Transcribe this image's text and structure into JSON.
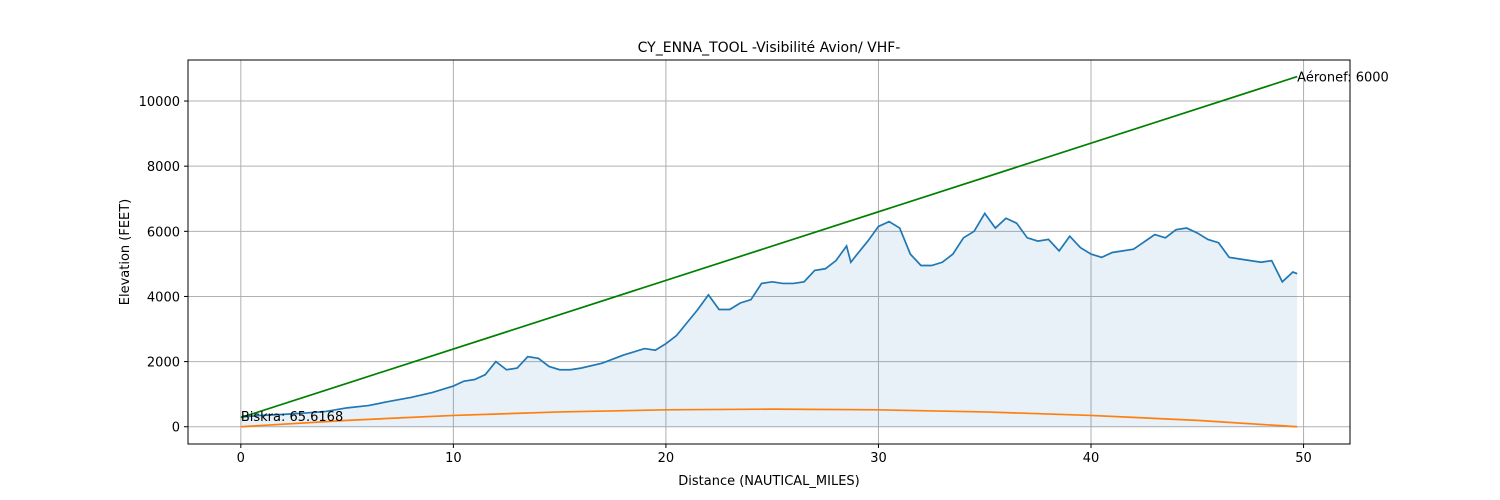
{
  "chart_data": {
    "type": "line",
    "title": "CY_ENNA_TOOL -Visibilité Avion/ VHF-",
    "x_label": "Distance (NAUTICAL_MILES)",
    "y_label": "Elevation (FEET)",
    "xlim": [
      -2.485,
      52.185
    ],
    "ylim": [
      -530,
      11260
    ],
    "xticks": [
      0,
      10,
      20,
      30,
      40,
      50
    ],
    "yticks": [
      0,
      2000,
      4000,
      6000,
      8000,
      10000
    ],
    "grid": true,
    "series": [
      {
        "color": "#1f77b4",
        "fill": "#1f77b4",
        "x": [
          0,
          1,
          2,
          3,
          4,
          5,
          6,
          7,
          8,
          9,
          10,
          10.5,
          11,
          11.5,
          12,
          12.5,
          13,
          13.5,
          14,
          14.5,
          15,
          15.5,
          16,
          17,
          18,
          19,
          19.5,
          20,
          20.5,
          21,
          21.5,
          22,
          22.5,
          23,
          23.5,
          24,
          24.5,
          25,
          25.5,
          26,
          26.5,
          27,
          27.5,
          28,
          28.5,
          28.7,
          29,
          29.5,
          30,
          30.5,
          31,
          31.5,
          32,
          32.5,
          33,
          33.5,
          34,
          34.5,
          35,
          35.5,
          36,
          36.5,
          37,
          37.5,
          38,
          38.5,
          39,
          39.5,
          40,
          40.5,
          41,
          42,
          43,
          43.5,
          44,
          44.5,
          45,
          45.5,
          46,
          46.5,
          47,
          48,
          48.5,
          49,
          49.5,
          49.7
        ],
        "values": [
          300,
          350,
          380,
          420,
          470,
          580,
          650,
          780,
          900,
          1050,
          1250,
          1400,
          1450,
          1600,
          2000,
          1750,
          1800,
          2150,
          2100,
          1850,
          1750,
          1750,
          1800,
          1950,
          2200,
          2400,
          2350,
          2550,
          2800,
          3200,
          3600,
          4050,
          3600,
          3600,
          3800,
          3900,
          4400,
          4450,
          4400,
          4400,
          4450,
          4800,
          4850,
          5100,
          5550,
          5050,
          5300,
          5700,
          6150,
          6300,
          6100,
          5300,
          4950,
          4950,
          5050,
          5300,
          5800,
          6000,
          6550,
          6100,
          6400,
          6250,
          5800,
          5700,
          5750,
          5400,
          5850,
          5500,
          5300,
          5200,
          5350,
          5450,
          5900,
          5800,
          6050,
          6100,
          5950,
          5750,
          5650,
          5200,
          5150,
          5050,
          5100,
          4450,
          4750,
          4700
        ]
      },
      {
        "color": "#008000",
        "x": [
          0,
          49.7
        ],
        "values": [
          280,
          10750
        ]
      },
      {
        "color": "#ff7f0e",
        "x": [
          0,
          5,
          10,
          15,
          20,
          25,
          30,
          35,
          40,
          45,
          49.7
        ],
        "values": [
          0,
          196,
          347,
          455,
          519,
          540,
          519,
          455,
          347,
          196,
          0
        ]
      }
    ],
    "annotations": [
      {
        "text": "Biskra: 65.6168",
        "x": 0,
        "y": 330
      },
      {
        "text": "Aéronef: 6000",
        "x": 49.7,
        "y": 10750
      }
    ]
  }
}
